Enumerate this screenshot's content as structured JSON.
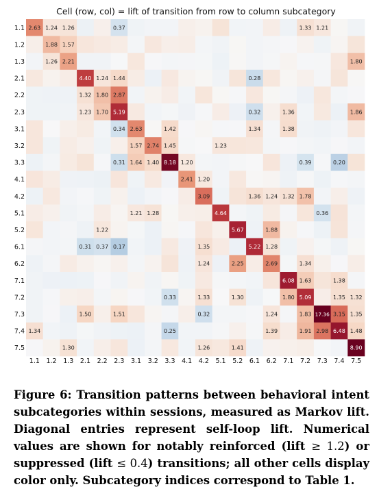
{
  "chart_data": {
    "type": "heatmap",
    "title": "Cell (row, col) = lift of transition from row to column subcategory",
    "row_labels": [
      "1.1",
      "1.2",
      "1.3",
      "2.1",
      "2.2",
      "2.3",
      "3.1",
      "3.2",
      "3.3",
      "4.1",
      "4.2",
      "5.1",
      "5.2",
      "6.1",
      "6.2",
      "7.1",
      "7.2",
      "7.3",
      "7.4",
      "7.5"
    ],
    "col_labels": [
      "1.1",
      "1.2",
      "1.3",
      "2.1",
      "2.2",
      "2.3",
      "3.1",
      "3.2",
      "3.3",
      "4.1",
      "4.2",
      "5.1",
      "5.2",
      "6.1",
      "6.2",
      "7.1",
      "7.2",
      "7.3",
      "7.4",
      "7.5"
    ],
    "labeled_cells": [
      {
        "row": "1.1",
        "col": "1.1",
        "value": 2.63
      },
      {
        "row": "1.1",
        "col": "1.2",
        "value": 1.24
      },
      {
        "row": "1.1",
        "col": "1.3",
        "value": 1.26
      },
      {
        "row": "1.1",
        "col": "2.3",
        "value": 0.37
      },
      {
        "row": "1.1",
        "col": "7.2",
        "value": 1.33
      },
      {
        "row": "1.1",
        "col": "7.3",
        "value": 1.21
      },
      {
        "row": "1.2",
        "col": "1.2",
        "value": 1.88
      },
      {
        "row": "1.2",
        "col": "1.3",
        "value": 1.57
      },
      {
        "row": "1.3",
        "col": "1.2",
        "value": 1.26
      },
      {
        "row": "1.3",
        "col": "1.3",
        "value": 2.21
      },
      {
        "row": "1.3",
        "col": "7.5",
        "value": 1.8
      },
      {
        "row": "2.1",
        "col": "2.1",
        "value": 4.4
      },
      {
        "row": "2.1",
        "col": "2.2",
        "value": 1.24
      },
      {
        "row": "2.1",
        "col": "2.3",
        "value": 1.44
      },
      {
        "row": "2.1",
        "col": "6.1",
        "value": 0.28
      },
      {
        "row": "2.2",
        "col": "2.1",
        "value": 1.32
      },
      {
        "row": "2.2",
        "col": "2.2",
        "value": 1.8
      },
      {
        "row": "2.2",
        "col": "2.3",
        "value": 2.87
      },
      {
        "row": "2.3",
        "col": "2.1",
        "value": 1.23
      },
      {
        "row": "2.3",
        "col": "2.2",
        "value": 1.7
      },
      {
        "row": "2.3",
        "col": "2.3",
        "value": 5.19
      },
      {
        "row": "2.3",
        "col": "6.1",
        "value": 0.32
      },
      {
        "row": "2.3",
        "col": "7.1",
        "value": 1.36
      },
      {
        "row": "2.3",
        "col": "7.5",
        "value": 1.86
      },
      {
        "row": "3.1",
        "col": "2.3",
        "value": 0.34
      },
      {
        "row": "3.1",
        "col": "3.1",
        "value": 2.63
      },
      {
        "row": "3.1",
        "col": "3.3",
        "value": 1.42
      },
      {
        "row": "3.1",
        "col": "6.1",
        "value": 1.34
      },
      {
        "row": "3.1",
        "col": "7.1",
        "value": 1.38
      },
      {
        "row": "3.2",
        "col": "3.1",
        "value": 1.57
      },
      {
        "row": "3.2",
        "col": "3.2",
        "value": 2.74
      },
      {
        "row": "3.2",
        "col": "3.3",
        "value": 1.45
      },
      {
        "row": "3.2",
        "col": "5.1",
        "value": 1.23
      },
      {
        "row": "3.3",
        "col": "2.3",
        "value": 0.31
      },
      {
        "row": "3.3",
        "col": "3.1",
        "value": 1.64
      },
      {
        "row": "3.3",
        "col": "3.2",
        "value": 1.4
      },
      {
        "row": "3.3",
        "col": "3.3",
        "value": 8.18
      },
      {
        "row": "3.3",
        "col": "4.1",
        "value": 1.2
      },
      {
        "row": "3.3",
        "col": "7.2",
        "value": 0.39
      },
      {
        "row": "3.3",
        "col": "7.4",
        "value": 0.2
      },
      {
        "row": "4.1",
        "col": "4.1",
        "value": 2.41
      },
      {
        "row": "4.1",
        "col": "4.2",
        "value": 1.2
      },
      {
        "row": "4.2",
        "col": "4.2",
        "value": 3.09
      },
      {
        "row": "4.2",
        "col": "6.1",
        "value": 1.36
      },
      {
        "row": "4.2",
        "col": "6.2",
        "value": 1.24
      },
      {
        "row": "4.2",
        "col": "7.1",
        "value": 1.32
      },
      {
        "row": "4.2",
        "col": "7.2",
        "value": 1.78
      },
      {
        "row": "5.1",
        "col": "3.1",
        "value": 1.21
      },
      {
        "row": "5.1",
        "col": "3.2",
        "value": 1.28
      },
      {
        "row": "5.1",
        "col": "5.1",
        "value": 4.64
      },
      {
        "row": "5.1",
        "col": "7.3",
        "value": 0.36
      },
      {
        "row": "5.2",
        "col": "2.2",
        "value": 1.22
      },
      {
        "row": "5.2",
        "col": "5.2",
        "value": 5.67
      },
      {
        "row": "5.2",
        "col": "6.2",
        "value": 1.88
      },
      {
        "row": "6.1",
        "col": "2.1",
        "value": 0.31
      },
      {
        "row": "6.1",
        "col": "2.2",
        "value": 0.37
      },
      {
        "row": "6.1",
        "col": "2.3",
        "value": 0.17
      },
      {
        "row": "6.1",
        "col": "4.2",
        "value": 1.35
      },
      {
        "row": "6.1",
        "col": "6.1",
        "value": 5.22
      },
      {
        "row": "6.1",
        "col": "6.2",
        "value": 1.28
      },
      {
        "row": "6.2",
        "col": "4.2",
        "value": 1.24
      },
      {
        "row": "6.2",
        "col": "5.2",
        "value": 2.25
      },
      {
        "row": "6.2",
        "col": "6.2",
        "value": 2.69
      },
      {
        "row": "6.2",
        "col": "7.2",
        "value": 1.34
      },
      {
        "row": "7.1",
        "col": "7.1",
        "value": 6.08
      },
      {
        "row": "7.1",
        "col": "7.2",
        "value": 1.63
      },
      {
        "row": "7.1",
        "col": "7.4",
        "value": 1.38
      },
      {
        "row": "7.2",
        "col": "3.3",
        "value": 0.33
      },
      {
        "row": "7.2",
        "col": "4.2",
        "value": 1.33
      },
      {
        "row": "7.2",
        "col": "5.2",
        "value": 1.3
      },
      {
        "row": "7.2",
        "col": "7.1",
        "value": 1.8
      },
      {
        "row": "7.2",
        "col": "7.2",
        "value": 5.09
      },
      {
        "row": "7.2",
        "col": "7.4",
        "value": 1.35
      },
      {
        "row": "7.2",
        "col": "7.5",
        "value": 1.32
      },
      {
        "row": "7.3",
        "col": "2.1",
        "value": 1.5
      },
      {
        "row": "7.3",
        "col": "2.3",
        "value": 1.51
      },
      {
        "row": "7.3",
        "col": "4.2",
        "value": 0.32
      },
      {
        "row": "7.3",
        "col": "6.2",
        "value": 1.24
      },
      {
        "row": "7.3",
        "col": "7.2",
        "value": 1.83
      },
      {
        "row": "7.3",
        "col": "7.3",
        "value": 17.36
      },
      {
        "row": "7.3",
        "col": "7.4",
        "value": 3.15
      },
      {
        "row": "7.3",
        "col": "7.5",
        "value": 1.35
      },
      {
        "row": "7.4",
        "col": "1.1",
        "value": 1.34
      },
      {
        "row": "7.4",
        "col": "3.3",
        "value": 0.25
      },
      {
        "row": "7.4",
        "col": "6.2",
        "value": 1.39
      },
      {
        "row": "7.4",
        "col": "7.2",
        "value": 1.91
      },
      {
        "row": "7.4",
        "col": "7.3",
        "value": 2.98
      },
      {
        "row": "7.4",
        "col": "7.4",
        "value": 6.48
      },
      {
        "row": "7.4",
        "col": "7.5",
        "value": 1.48
      },
      {
        "row": "7.5",
        "col": "1.3",
        "value": 1.3
      },
      {
        "row": "7.5",
        "col": "4.2",
        "value": 1.26
      },
      {
        "row": "7.5",
        "col": "5.2",
        "value": 1.41
      },
      {
        "row": "7.5",
        "col": "7.5",
        "value": 8.9
      }
    ],
    "unlabeled_cells_color_only": true,
    "colormap": "diverging blue-white-red, log lift centered at 1.0",
    "colors": {
      "low": "#3b6fb0",
      "neutral": "#f7f7f7",
      "high": "#67001f"
    },
    "grid": false,
    "legend": "none"
  },
  "caption": {
    "label": "Figure 6:",
    "text_1": "Transition patterns between behavioral intent subcategories within sessions, measured as Markov lift. Diagonal entries represent self-loop lift. Numerical values are shown for notably reinforced (lift ",
    "ge": "≥ 1.2",
    "text_2": ") or suppressed (lift ",
    "le": "≤ 0.4",
    "text_3": ") transitions; all other cells display color only. Subcategory indices correspond to Table 1."
  }
}
